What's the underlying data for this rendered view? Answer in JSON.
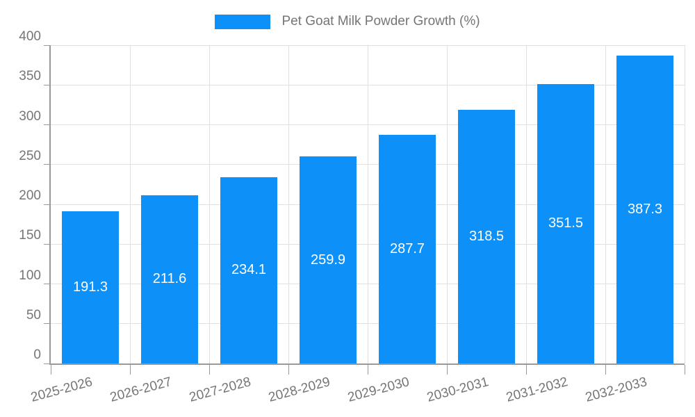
{
  "legend": {
    "label": "Pet Goat Milk Powder Growth (%)"
  },
  "chart_data": {
    "type": "bar",
    "title": "Pet Goat Milk Powder Growth (%)",
    "series_name": "Pet Goat Milk Powder Growth (%)",
    "categories": [
      "2025-2026",
      "2026-2027",
      "2027-2028",
      "2028-2029",
      "2029-2030",
      "2030-2031",
      "2031-2032",
      "2032-2033"
    ],
    "values": [
      191.3,
      211.6,
      234.1,
      259.9,
      287.7,
      318.5,
      351.5,
      387.3
    ],
    "value_labels": [
      "191.3",
      "211.6",
      "234.1",
      "259.9",
      "287.7",
      "318.5",
      "351.5",
      "387.3"
    ],
    "xlabel": "",
    "ylabel": "",
    "ylim": [
      0,
      400
    ],
    "yticks": [
      0,
      50,
      100,
      150,
      200,
      250,
      300,
      350,
      400
    ],
    "grid": true,
    "legend_position": "top-center",
    "x_label_rotation_deg": -15,
    "data_label_position": "inside-center",
    "colors": {
      "bar": "#0d90f8",
      "data_label": "#ffffff",
      "axis": "#999999",
      "gridline": "#e0e0e0",
      "tick_label": "#757575",
      "legend_text": "#757575",
      "background": "#ffffff"
    }
  }
}
